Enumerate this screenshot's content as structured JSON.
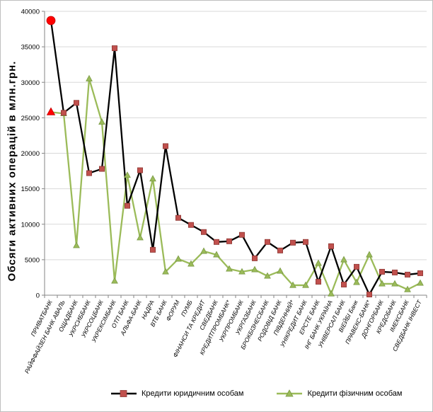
{
  "chart_data": {
    "type": "line",
    "title": "",
    "xlabel": "",
    "ylabel": "Обсяги активних операцій в млн.грн.",
    "ylim": [
      0,
      40000
    ],
    "yticks": [
      0,
      5000,
      10000,
      15000,
      20000,
      25000,
      30000,
      35000,
      40000
    ],
    "ytick_labels": [
      "0",
      "5000",
      "10000",
      "15000",
      "20000",
      "25000",
      "30000",
      "35000",
      "40000"
    ],
    "grid": true,
    "legend_position": "bottom",
    "categories": [
      "ПРИВАТБАНК",
      "РАЙФФАЙЗЕН БАНК АВАЛЬ",
      "ОЩАДБАНК",
      "УКРСИББАНК",
      "УКРСОЦБАНК",
      "УКРЕКСІМБАНК",
      "ОТП БАНК",
      "АЛЬФА-БАНК",
      "НАДРА",
      "ВТБ БАНК",
      "ФОРУМ",
      "ПУМБ",
      "ФІНАНСИ ТА КРЕДИТ",
      "СВЕДБАНК",
      "КРЕДИТПРОМБАНК*",
      "УКРПРОМБАНК",
      "УКРГАЗБАНК",
      "БРОКБІЗНЕСБАНК",
      "РОДОВІД БАНК",
      "ПІВДЕННИЙ*",
      "УНІКРЕДИТ БАНК",
      "ЕРСТЕ БАНК",
      "ІНГ БАНК УКРАЇНА",
      "УНІВЕРСАЛ БАНК",
      "ВІЕЙБІ Банк",
      "ПРАВЕКС-БАНК*",
      "ДОНГОРБАНК",
      "КРЕДОБАНК",
      "ІМЕКСБАНК",
      "СВЕДБАНК ІНВЕСТ"
    ],
    "series": [
      {
        "name": "Кредити юридичним особам",
        "color": "#000000",
        "marker_color": "#c0504d",
        "marker": "square",
        "values": [
          38700,
          25700,
          27100,
          17200,
          17800,
          34800,
          12600,
          17600,
          6400,
          21000,
          10900,
          9900,
          8900,
          7500,
          7600,
          8500,
          5200,
          7500,
          6300,
          7400,
          7500,
          1900,
          6900,
          1500,
          4000,
          100,
          3300,
          3200,
          2900,
          3100
        ]
      },
      {
        "name": "Кредити фізичним особам",
        "color": "#9bbb59",
        "marker_color": "#9bbb59",
        "marker": "triangle",
        "values": [
          25800,
          25600,
          7000,
          30500,
          24400,
          2000,
          16900,
          8100,
          16400,
          3300,
          5100,
          4400,
          6200,
          5700,
          3700,
          3300,
          3600,
          2700,
          3400,
          1400,
          1400,
          4500,
          200,
          5000,
          1800,
          5700,
          1600,
          1600,
          800,
          1700
        ]
      }
    ],
    "annotations": [
      {
        "type": "circle",
        "category": "ПРИВАТБАНК",
        "value": 38700,
        "color": "#ff0000"
      },
      {
        "type": "triangle",
        "category": "ПРИВАТБАНК",
        "value": 25800,
        "color": "#ff0000"
      }
    ]
  }
}
